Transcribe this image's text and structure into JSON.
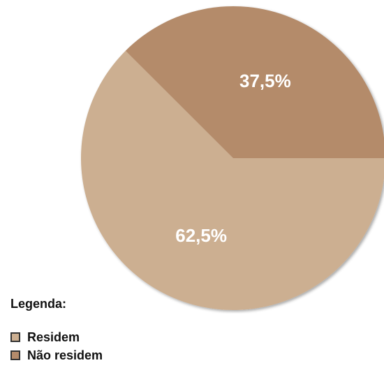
{
  "chart_data": {
    "type": "pie",
    "series": [
      {
        "name": "Residem",
        "value": 62.5,
        "label": "62,5%",
        "color": "#CCAF91"
      },
      {
        "name": "Não residem",
        "value": 37.5,
        "label": "37,5%",
        "color": "#B48B6B"
      }
    ],
    "start_angle_deg": 0,
    "direction": "clockwise",
    "legend_placement": "bottom-left"
  },
  "legend": {
    "title": "Legenda:",
    "items": [
      {
        "label": "Residem",
        "color": "#CCAF91"
      },
      {
        "label": "Não residem",
        "color": "#B48B6B"
      }
    ]
  }
}
